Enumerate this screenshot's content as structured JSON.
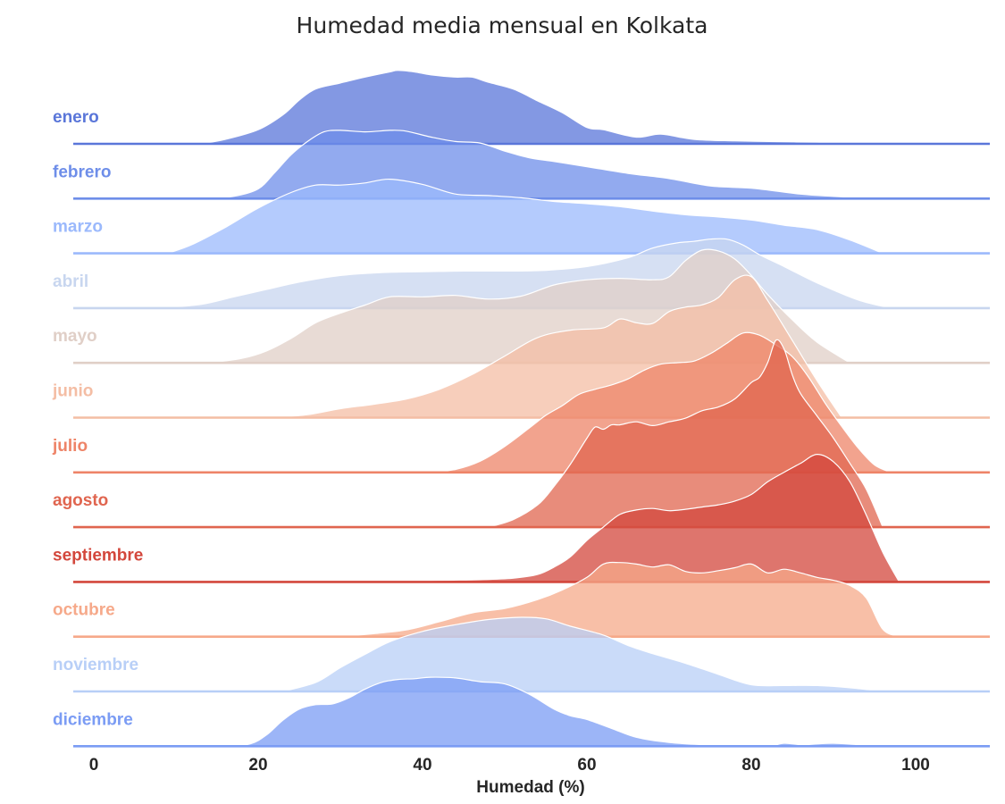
{
  "chart_data": {
    "type": "area",
    "subtype": "ridgeline-density",
    "title": "Humedad media mensual en Kolkata",
    "xlabel": "Humedad (%)",
    "ylabel": "",
    "xlim": [
      -2.5,
      109
    ],
    "xticks": [
      0,
      20,
      40,
      60,
      80,
      100
    ],
    "grid": false,
    "legend": "none (row labels on left)",
    "series": [
      {
        "name": "enero",
        "color": "#5a76d9",
        "x": [
          13,
          16,
          20,
          23,
          25,
          27,
          30,
          33,
          36,
          37,
          39,
          41,
          44,
          46,
          48,
          51,
          54,
          57,
          60,
          62,
          66,
          69,
          73,
          78,
          83,
          88,
          93
        ],
        "y": [
          0,
          0.06,
          0.19,
          0.39,
          0.59,
          0.74,
          0.82,
          0.9,
          0.97,
          0.99,
          0.97,
          0.93,
          0.9,
          0.9,
          0.83,
          0.74,
          0.58,
          0.42,
          0.22,
          0.19,
          0.09,
          0.13,
          0.06,
          0.04,
          0.03,
          0.02,
          0
        ]
      },
      {
        "name": "febrero",
        "color": "#6e8ee9",
        "x": [
          13,
          17,
          20,
          22,
          24,
          26,
          28,
          30,
          33,
          36,
          38,
          41,
          44,
          47,
          50,
          53,
          56,
          60,
          65,
          70,
          75,
          80,
          86,
          90,
          95
        ],
        "y": [
          0,
          0.03,
          0.13,
          0.35,
          0.59,
          0.77,
          0.9,
          0.92,
          0.9,
          0.92,
          0.91,
          0.83,
          0.77,
          0.75,
          0.64,
          0.55,
          0.5,
          0.43,
          0.34,
          0.27,
          0.17,
          0.14,
          0.06,
          0.03,
          0
        ]
      },
      {
        "name": "marzo",
        "color": "#9bb9fc",
        "x": [
          9,
          12,
          16,
          20,
          24,
          27,
          30,
          33,
          36,
          40,
          44,
          48,
          52,
          56,
          60,
          64,
          68,
          72,
          76,
          80,
          84,
          88,
          92,
          96
        ],
        "y": [
          0,
          0.12,
          0.35,
          0.61,
          0.82,
          0.92,
          0.92,
          0.95,
          1.0,
          0.93,
          0.8,
          0.78,
          0.75,
          0.7,
          0.67,
          0.63,
          0.57,
          0.52,
          0.49,
          0.45,
          0.38,
          0.32,
          0.18,
          0
        ]
      },
      {
        "name": "abril",
        "color": "#c8d6ef",
        "x": [
          8,
          13,
          17,
          21,
          25,
          30,
          35,
          40,
          45,
          50,
          55,
          60,
          65,
          68,
          71,
          73,
          75,
          77,
          79,
          81,
          84,
          88,
          93,
          97
        ],
        "y": [
          0,
          0.05,
          0.15,
          0.25,
          0.35,
          0.44,
          0.48,
          0.49,
          0.5,
          0.5,
          0.51,
          0.56,
          0.68,
          0.81,
          0.88,
          0.9,
          0.93,
          0.93,
          0.85,
          0.72,
          0.56,
          0.34,
          0.11,
          0
        ]
      },
      {
        "name": "mayo",
        "color": "#e0cfc7",
        "x": [
          14,
          18,
          21,
          24,
          27,
          30,
          33,
          36,
          40,
          44,
          48,
          52,
          56,
          60,
          64,
          68,
          70,
          72,
          74,
          76,
          78,
          80,
          82,
          85,
          88,
          92
        ],
        "y": [
          0,
          0.06,
          0.16,
          0.33,
          0.54,
          0.67,
          0.78,
          0.89,
          0.89,
          0.91,
          0.86,
          0.9,
          1.05,
          1.12,
          1.14,
          1.12,
          1.16,
          1.38,
          1.52,
          1.51,
          1.4,
          1.18,
          0.92,
          0.58,
          0.28,
          0
        ]
      },
      {
        "name": "junio",
        "color": "#f4bda4",
        "x": [
          22,
          26,
          30,
          34,
          38,
          42,
          46,
          50,
          54,
          58,
          62,
          64,
          66,
          68,
          70,
          72,
          74,
          76,
          78,
          80,
          82,
          85,
          88,
          91
        ],
        "y": [
          0,
          0.04,
          0.12,
          0.18,
          0.25,
          0.38,
          0.58,
          0.83,
          1.08,
          1.18,
          1.21,
          1.33,
          1.28,
          1.27,
          1.43,
          1.49,
          1.52,
          1.62,
          1.86,
          1.9,
          1.58,
          1.04,
          0.5,
          0
        ]
      },
      {
        "name": "julio",
        "color": "#ee8468",
        "x": [
          41,
          44,
          47,
          50,
          53,
          55,
          57,
          59,
          61,
          63,
          65,
          67,
          69,
          71,
          73,
          75,
          77,
          79,
          81,
          83,
          85,
          87,
          89,
          91,
          93,
          95,
          97
        ],
        "y": [
          0,
          0.04,
          0.15,
          0.35,
          0.6,
          0.77,
          0.9,
          1.05,
          1.12,
          1.18,
          1.26,
          1.38,
          1.46,
          1.48,
          1.5,
          1.6,
          1.74,
          1.88,
          1.85,
          1.72,
          1.56,
          1.28,
          0.93,
          0.62,
          0.33,
          0.1,
          0
        ]
      },
      {
        "name": "agosto",
        "color": "#e0654f",
        "x": [
          48,
          51,
          54,
          56,
          58,
          60,
          61,
          62,
          63,
          64,
          66,
          68,
          70,
          72,
          74,
          76,
          78,
          80,
          81,
          82,
          83,
          84,
          85,
          86,
          88,
          90,
          92,
          94,
          96
        ],
        "y": [
          0,
          0.1,
          0.3,
          0.55,
          0.85,
          1.2,
          1.35,
          1.32,
          1.38,
          1.38,
          1.42,
          1.37,
          1.42,
          1.47,
          1.57,
          1.62,
          1.73,
          1.95,
          2.02,
          2.22,
          2.52,
          2.4,
          2.05,
          1.8,
          1.5,
          1.2,
          0.86,
          0.51,
          0
        ]
      },
      {
        "name": "septiembre",
        "color": "#d3473c",
        "x": [
          35,
          42,
          47,
          51,
          54,
          56,
          58,
          60,
          62,
          64,
          66,
          68,
          70,
          72,
          74,
          76,
          78,
          80,
          82,
          84,
          86,
          88,
          90,
          92,
          94,
          96,
          98
        ],
        "y": [
          0,
          0.02,
          0.03,
          0.05,
          0.1,
          0.2,
          0.34,
          0.56,
          0.74,
          0.91,
          0.97,
          0.99,
          0.96,
          0.98,
          1.01,
          1.04,
          1.09,
          1.18,
          1.35,
          1.48,
          1.6,
          1.72,
          1.62,
          1.35,
          0.9,
          0.4,
          0
        ]
      },
      {
        "name": "octubre",
        "color": "#f6a98a",
        "x": [
          30,
          34,
          38,
          42,
          46,
          50,
          54,
          57,
          60,
          62,
          64,
          66,
          68,
          70,
          72,
          74,
          76,
          78,
          80,
          82,
          84,
          86,
          88,
          90,
          92,
          94,
          96,
          98
        ],
        "y": [
          0,
          0.04,
          0.09,
          0.2,
          0.32,
          0.38,
          0.5,
          0.63,
          0.8,
          0.98,
          1.0,
          0.98,
          0.94,
          0.97,
          0.88,
          0.86,
          0.89,
          0.93,
          0.98,
          0.86,
          0.91,
          0.86,
          0.8,
          0.76,
          0.69,
          0.52,
          0.1,
          0
        ]
      },
      {
        "name": "noviembre",
        "color": "#b8cff7",
        "x": [
          23,
          27,
          30,
          33,
          36,
          40,
          44,
          48,
          52,
          55,
          58,
          62,
          65,
          68,
          72,
          76,
          80,
          84,
          88,
          92,
          96
        ],
        "y": [
          0,
          0.12,
          0.32,
          0.5,
          0.67,
          0.81,
          0.9,
          0.97,
          1.0,
          0.98,
          0.88,
          0.76,
          0.62,
          0.51,
          0.38,
          0.23,
          0.09,
          0.08,
          0.08,
          0.05,
          0
        ]
      },
      {
        "name": "diciembre",
        "color": "#7b9cf4",
        "x": [
          16,
          19,
          21,
          23,
          25,
          27,
          29,
          31,
          33,
          35,
          37,
          39,
          41,
          44,
          47,
          50,
          53,
          56,
          58,
          60,
          63,
          66,
          70,
          74,
          78,
          82,
          84,
          86,
          88,
          90,
          93,
          96
        ],
        "y": [
          0,
          0.03,
          0.15,
          0.35,
          0.5,
          0.56,
          0.57,
          0.65,
          0.77,
          0.86,
          0.9,
          0.91,
          0.93,
          0.92,
          0.87,
          0.84,
          0.7,
          0.5,
          0.41,
          0.36,
          0.24,
          0.12,
          0.05,
          0.02,
          0.0,
          0.0,
          0.04,
          0.02,
          0.03,
          0.04,
          0.02,
          0
        ]
      }
    ]
  }
}
